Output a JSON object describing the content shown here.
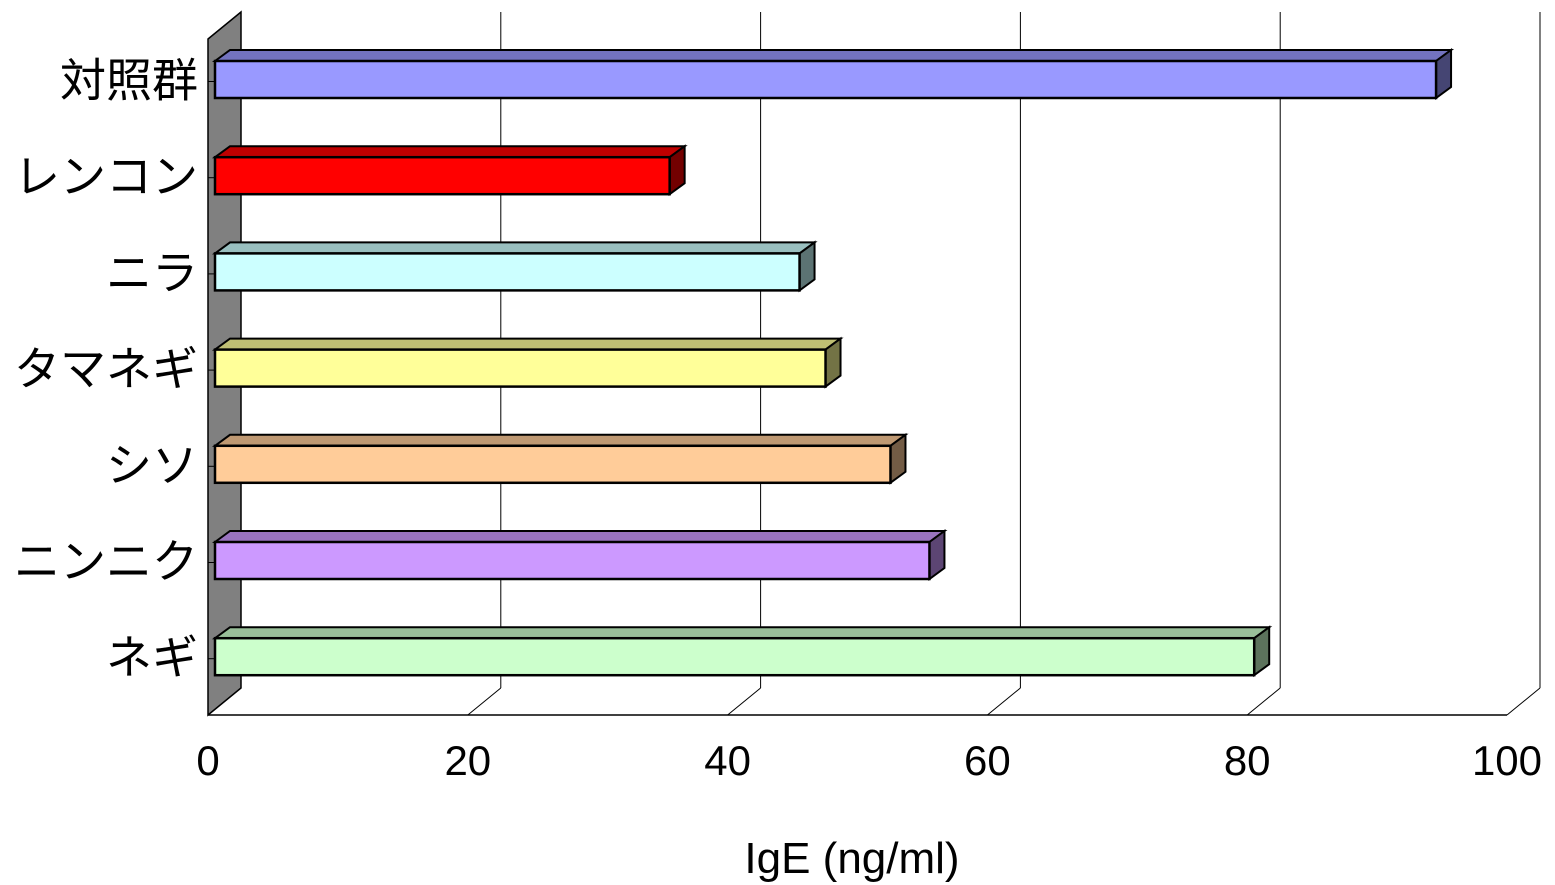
{
  "chart_data": {
    "type": "bar",
    "orientation": "horizontal",
    "style": "3d",
    "categories": [
      "対照群",
      "レンコン",
      "ニラ",
      "タマネギ",
      "シソ",
      "ニンニク",
      "ネギ"
    ],
    "values": [
      94,
      35,
      45,
      47,
      52,
      55,
      80
    ],
    "colors": [
      "#9999ff",
      "#ff0000",
      "#ccffff",
      "#ffff99",
      "#ffcc99",
      "#cc99ff",
      "#ccffcc"
    ],
    "xlabel": "IgE (ng/ml)",
    "ylabel": "",
    "xlim": [
      0,
      100
    ],
    "xticks": [
      "0",
      "20",
      "40",
      "60",
      "80",
      "100"
    ],
    "grid": true,
    "legend": "none"
  }
}
